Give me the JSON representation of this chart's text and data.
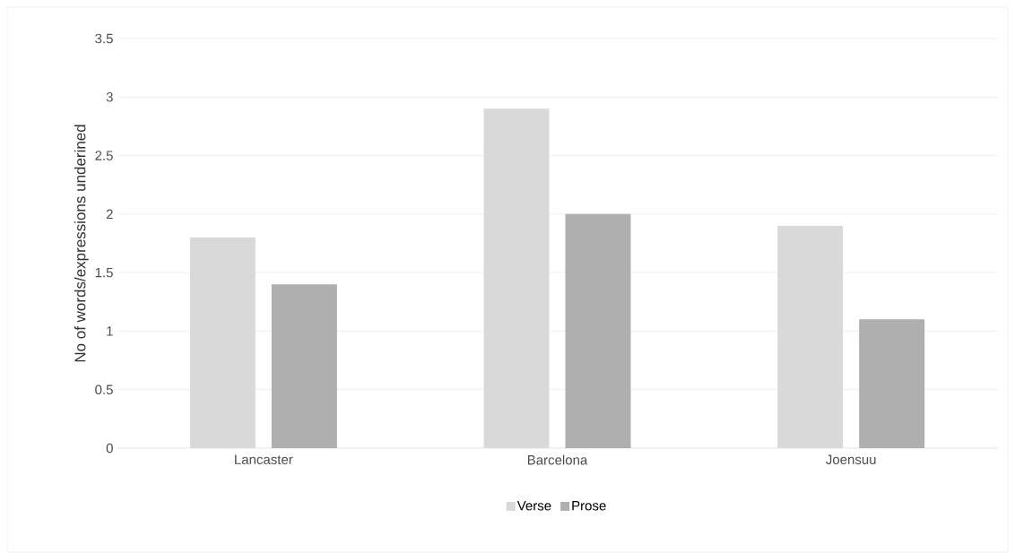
{
  "chart_data": {
    "type": "bar",
    "ylabel": "No of words/expressions underined",
    "categories": [
      "Lancaster",
      "Barcelona",
      "Joensuu"
    ],
    "series": [
      {
        "name": "Verse",
        "color": "#d9d9d9",
        "values": [
          1.8,
          2.9,
          1.9
        ]
      },
      {
        "name": "Prose",
        "color": "#afafaf",
        "values": [
          1.4,
          2.0,
          1.1
        ]
      }
    ],
    "ylim": [
      0,
      3.5
    ],
    "yticks": [
      0,
      0.5,
      1,
      1.5,
      2,
      2.5,
      3,
      3.5
    ],
    "grid": "y",
    "legend": "bottom"
  }
}
